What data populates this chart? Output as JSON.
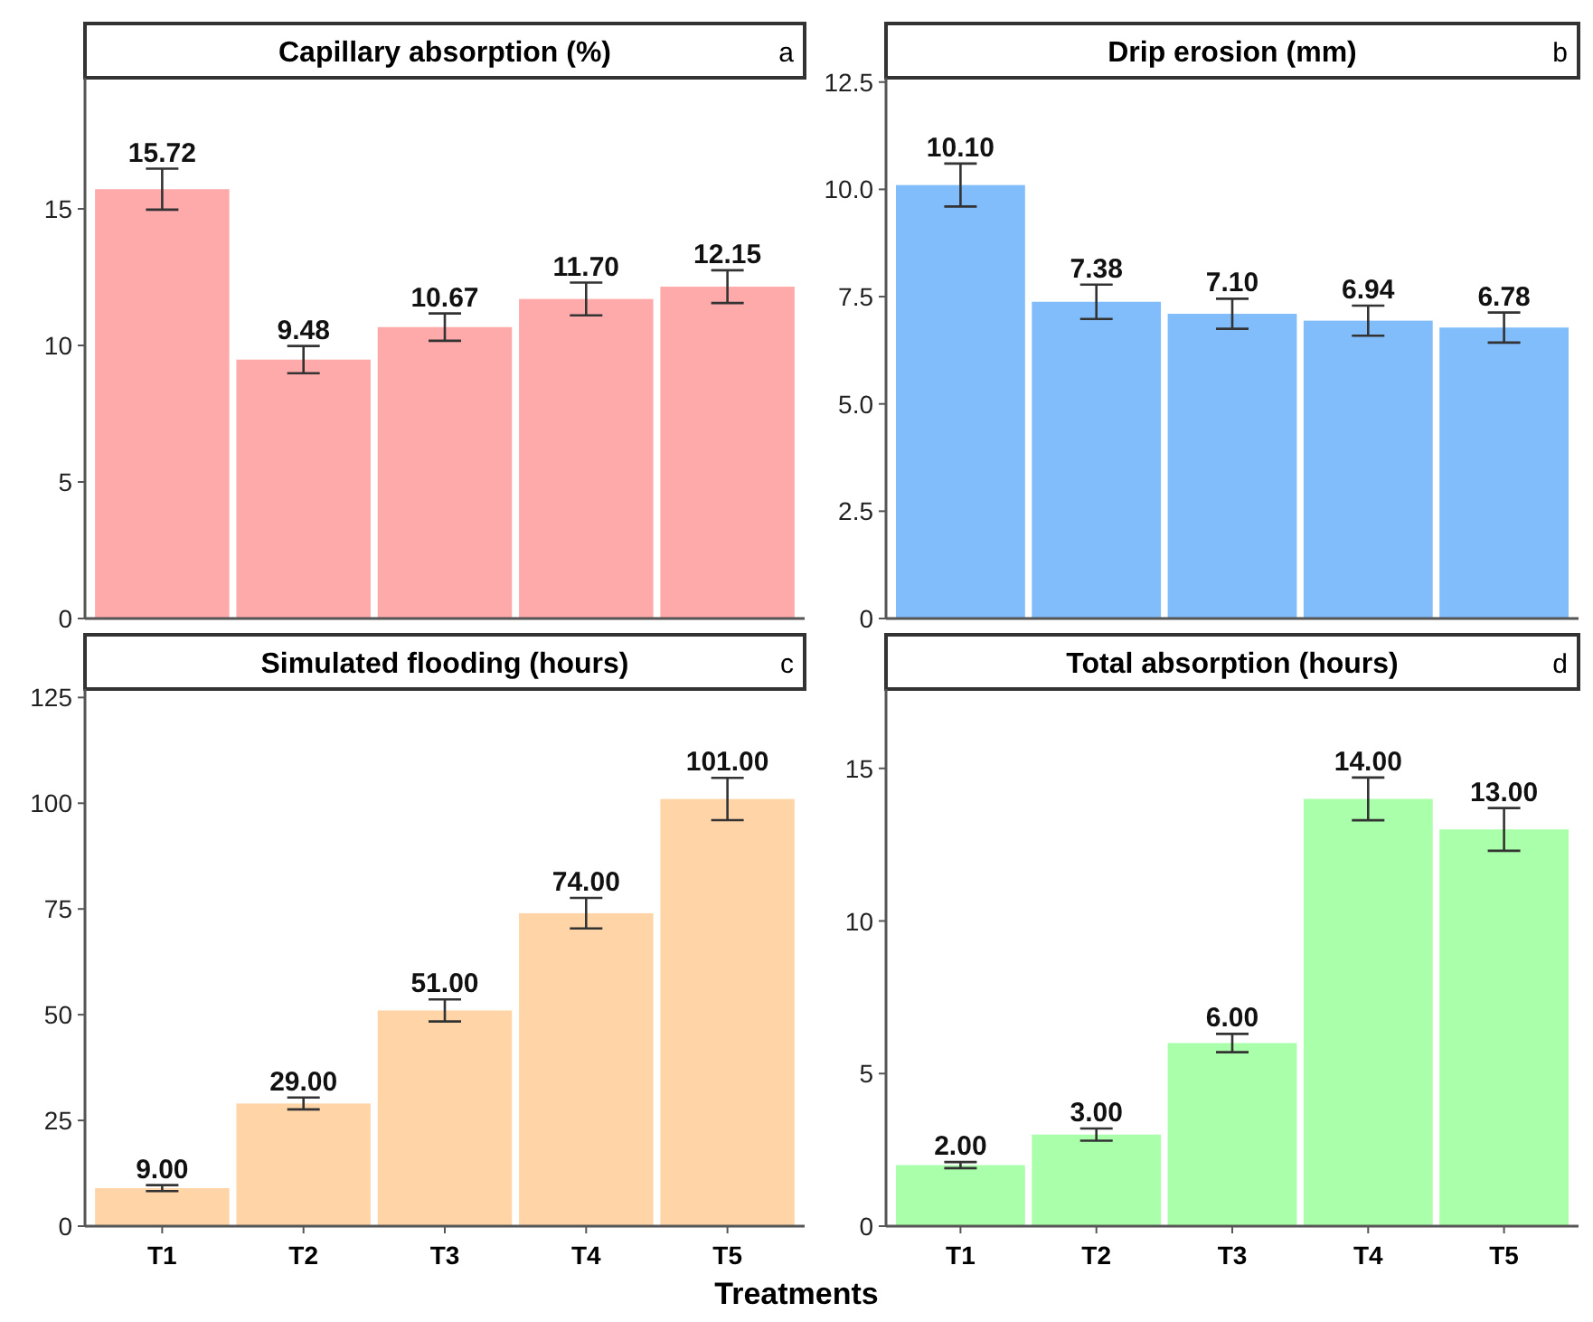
{
  "chart_data": [
    {
      "type": "bar",
      "title": "Capillary absorption (%)",
      "annotations": [
        "a"
      ],
      "categories": [
        null,
        null,
        null,
        null,
        null
      ],
      "values": [
        15.72,
        9.48,
        10.67,
        11.7,
        12.15
      ],
      "errors": [
        0.75,
        0.5,
        0.5,
        0.6,
        0.6
      ],
      "value_labels": [
        "15.72",
        "9.48",
        "10.67",
        "11.70",
        "12.15"
      ],
      "color": "#ffaaaa",
      "ylim": [
        0,
        19.8
      ],
      "yticks": [
        0,
        5,
        10,
        15
      ],
      "grid": false
    },
    {
      "type": "bar",
      "title": "Drip erosion (mm)",
      "annotations": [
        "b"
      ],
      "categories": [
        null,
        null,
        null,
        null,
        null
      ],
      "values": [
        10.1,
        7.38,
        7.1,
        6.94,
        6.78
      ],
      "errors": [
        0.5,
        0.4,
        0.35,
        0.35,
        0.35
      ],
      "value_labels": [
        "10.10",
        "7.38",
        "7.10",
        "6.94",
        "6.78"
      ],
      "color": "#80bdfa",
      "ylim": [
        0,
        12.6
      ],
      "yticks": [
        0,
        {
          "value": 2.5,
          "label": "2.5"
        },
        {
          "value": 5,
          "label": "5.0"
        },
        {
          "value": 7.5,
          "label": "7.5"
        },
        {
          "value": 10,
          "label": "10.0"
        },
        {
          "value": 12.5,
          "label": "12.5"
        }
      ],
      "grid": false
    },
    {
      "type": "bar",
      "title": "Simulated flooding (hours)",
      "xlabel": "Treatments",
      "annotations": [
        "c"
      ],
      "categories": [
        "T1",
        "T2",
        "T3",
        "T4",
        "T5"
      ],
      "values": [
        9,
        29,
        51,
        74,
        101
      ],
      "errors": [
        0.7,
        1.4,
        2.6,
        3.6,
        5
      ],
      "value_labels": [
        "9.00",
        "29.00",
        "51.00",
        "74.00",
        "101.00"
      ],
      "color": "#ffd5a8",
      "ylim": [
        0,
        127
      ],
      "yticks": [
        0,
        25,
        50,
        75,
        100,
        125
      ],
      "grid": false
    },
    {
      "type": "bar",
      "title": "Total absorption (hours)",
      "annotations": [
        "d"
      ],
      "categories": [
        "T1",
        "T2",
        "T3",
        "T4",
        "T5"
      ],
      "values": [
        2,
        3,
        6,
        14,
        13
      ],
      "errors": [
        0.1,
        0.2,
        0.3,
        0.7,
        0.7
      ],
      "value_labels": [
        "2.00",
        "3.00",
        "6.00",
        "14.00",
        "13.00"
      ],
      "color": "#aaffaa",
      "ylim": [
        0,
        17.6
      ],
      "yticks": [
        0,
        5,
        10,
        15
      ],
      "grid": false
    }
  ]
}
